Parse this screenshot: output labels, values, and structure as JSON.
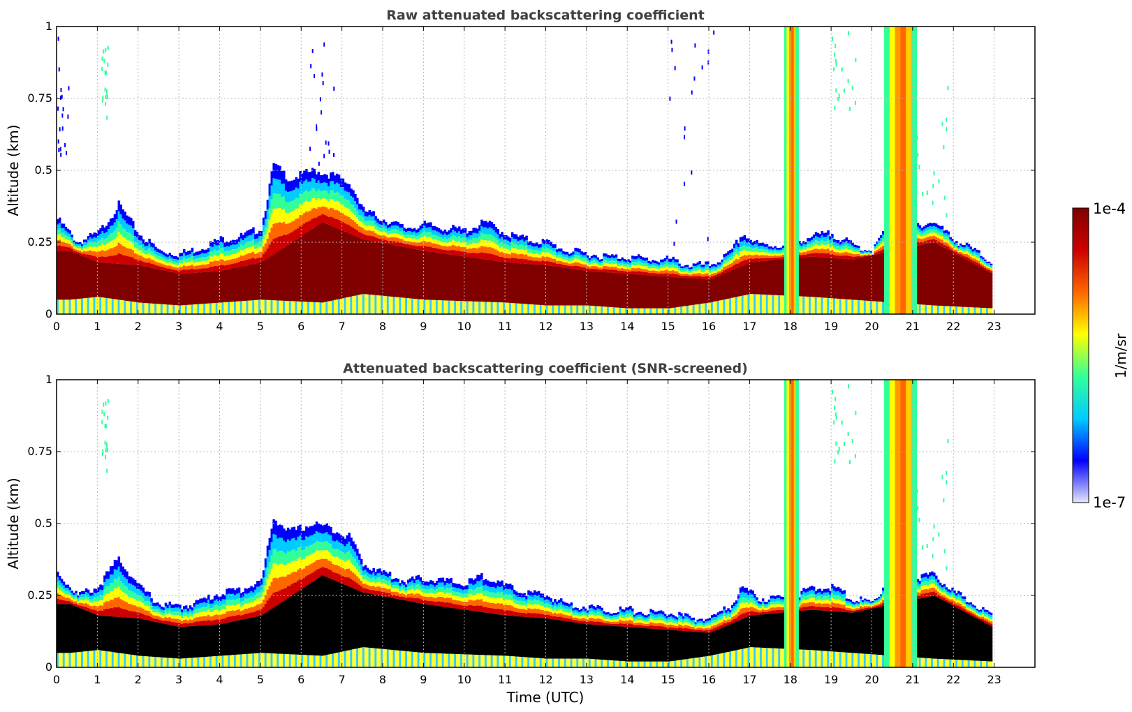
{
  "chart_data": [
    {
      "type": "heatmap",
      "title": "Raw attenuated backscattering coefficient",
      "xlabel": "",
      "ylabel": "Altitude (km)",
      "xlim": [
        0,
        24
      ],
      "ylim": [
        0,
        1
      ],
      "x_ticks": [
        "0",
        "1",
        "2",
        "3",
        "4",
        "5",
        "6",
        "7",
        "8",
        "9",
        "10",
        "11",
        "12",
        "13",
        "14",
        "15",
        "16",
        "17",
        "18",
        "19",
        "20",
        "21",
        "22",
        "23"
      ],
      "y_ticks": [
        "0",
        "0.25",
        "0.5",
        "0.75",
        "1"
      ],
      "grid": true,
      "screened": false,
      "layer_top_km": [
        [
          0.0,
          0.33
        ],
        [
          0.5,
          0.25
        ],
        [
          1.0,
          0.28
        ],
        [
          1.5,
          0.38
        ],
        [
          2.0,
          0.28
        ],
        [
          2.5,
          0.22
        ],
        [
          3.0,
          0.21
        ],
        [
          3.5,
          0.23
        ],
        [
          4.0,
          0.26
        ],
        [
          4.5,
          0.27
        ],
        [
          5.0,
          0.3
        ],
        [
          5.3,
          0.52
        ],
        [
          5.7,
          0.47
        ],
        [
          6.3,
          0.5
        ],
        [
          6.8,
          0.48
        ],
        [
          7.2,
          0.45
        ],
        [
          7.5,
          0.36
        ],
        [
          8.0,
          0.33
        ],
        [
          8.5,
          0.3
        ],
        [
          9.0,
          0.31
        ],
        [
          9.5,
          0.3
        ],
        [
          10.0,
          0.29
        ],
        [
          10.5,
          0.32
        ],
        [
          11.0,
          0.28
        ],
        [
          11.5,
          0.26
        ],
        [
          12.0,
          0.25
        ],
        [
          12.5,
          0.22
        ],
        [
          13.0,
          0.21
        ],
        [
          13.5,
          0.2
        ],
        [
          14.0,
          0.2
        ],
        [
          14.5,
          0.19
        ],
        [
          15.0,
          0.19
        ],
        [
          15.5,
          0.17
        ],
        [
          16.0,
          0.17
        ],
        [
          16.5,
          0.21
        ],
        [
          16.8,
          0.28
        ],
        [
          17.2,
          0.24
        ],
        [
          17.8,
          0.24
        ],
        [
          18.5,
          0.27
        ],
        [
          19.0,
          0.28
        ],
        [
          19.5,
          0.24
        ],
        [
          20.0,
          0.22
        ],
        [
          20.5,
          0.34
        ],
        [
          21.0,
          0.31
        ],
        [
          21.5,
          0.32
        ],
        [
          22.0,
          0.26
        ],
        [
          22.5,
          0.22
        ],
        [
          22.95,
          0.18
        ]
      ],
      "layer_core_km": [
        [
          0.3,
          0.05,
          0.22
        ],
        [
          1.0,
          0.06,
          0.18
        ],
        [
          2.0,
          0.04,
          0.17
        ],
        [
          3.0,
          0.03,
          0.14
        ],
        [
          4.0,
          0.04,
          0.15
        ],
        [
          5.0,
          0.05,
          0.18
        ],
        [
          6.5,
          0.04,
          0.32
        ],
        [
          7.5,
          0.07,
          0.26
        ],
        [
          9.0,
          0.05,
          0.22
        ],
        [
          11.0,
          0.04,
          0.18
        ],
        [
          12.0,
          0.03,
          0.17
        ],
        [
          13.0,
          0.03,
          0.15
        ],
        [
          14.0,
          0.02,
          0.14
        ],
        [
          15.0,
          0.02,
          0.13
        ],
        [
          16.0,
          0.04,
          0.12
        ],
        [
          17.0,
          0.07,
          0.18
        ],
        [
          18.5,
          0.06,
          0.2
        ],
        [
          19.5,
          0.05,
          0.19
        ],
        [
          20.5,
          0.04,
          0.22
        ],
        [
          21.5,
          0.03,
          0.25
        ],
        [
          22.95,
          0.02,
          0.14
        ]
      ],
      "columns_full_height_utc": [
        [
          17.85,
          18.2
        ],
        [
          20.3,
          21.1
        ]
      ],
      "cloud_features": [
        {
          "t0": 0.0,
          "t1": 0.3,
          "z0": 0.55,
          "z1": 1.0,
          "level": "low"
        },
        {
          "t0": 6.2,
          "t1": 6.8,
          "z0": 0.5,
          "z1": 1.0,
          "level": "low"
        },
        {
          "t0": 15.0,
          "t1": 16.2,
          "z0": 0.2,
          "z1": 1.0,
          "level": "low"
        },
        {
          "t0": 19.0,
          "t1": 19.6,
          "z0": 0.72,
          "z1": 1.0,
          "level": "medium"
        },
        {
          "t0": 21.0,
          "t1": 21.9,
          "z0": 0.35,
          "z1": 0.8,
          "level": "medium"
        },
        {
          "t0": 1.1,
          "t1": 1.25,
          "z0": 0.68,
          "z1": 0.98,
          "level": "medium"
        }
      ]
    },
    {
      "type": "heatmap",
      "title": "Attenuated backscattering coefficient (SNR-screened)",
      "xlabel": "Time (UTC)",
      "ylabel": "Altitude (km)",
      "xlim": [
        0,
        24
      ],
      "ylim": [
        0,
        1
      ],
      "x_ticks": [
        "0",
        "1",
        "2",
        "3",
        "4",
        "5",
        "6",
        "7",
        "8",
        "9",
        "10",
        "11",
        "12",
        "13",
        "14",
        "15",
        "16",
        "17",
        "18",
        "19",
        "20",
        "21",
        "22",
        "23"
      ],
      "y_ticks": [
        "0",
        "0.25",
        "0.5",
        "0.75",
        "1"
      ],
      "grid": true,
      "screened": true,
      "core_color": "#000000"
    }
  ],
  "colorbar": {
    "label": "1/m/sr",
    "max_label": "1e-4",
    "min_label": "1e-7",
    "scale": "log",
    "colormap": "jet",
    "stops": [
      "#e6e6fa",
      "#0000ff",
      "#00ccff",
      "#33ff99",
      "#ffff00",
      "#ff6600",
      "#cc0000",
      "#800000"
    ]
  }
}
